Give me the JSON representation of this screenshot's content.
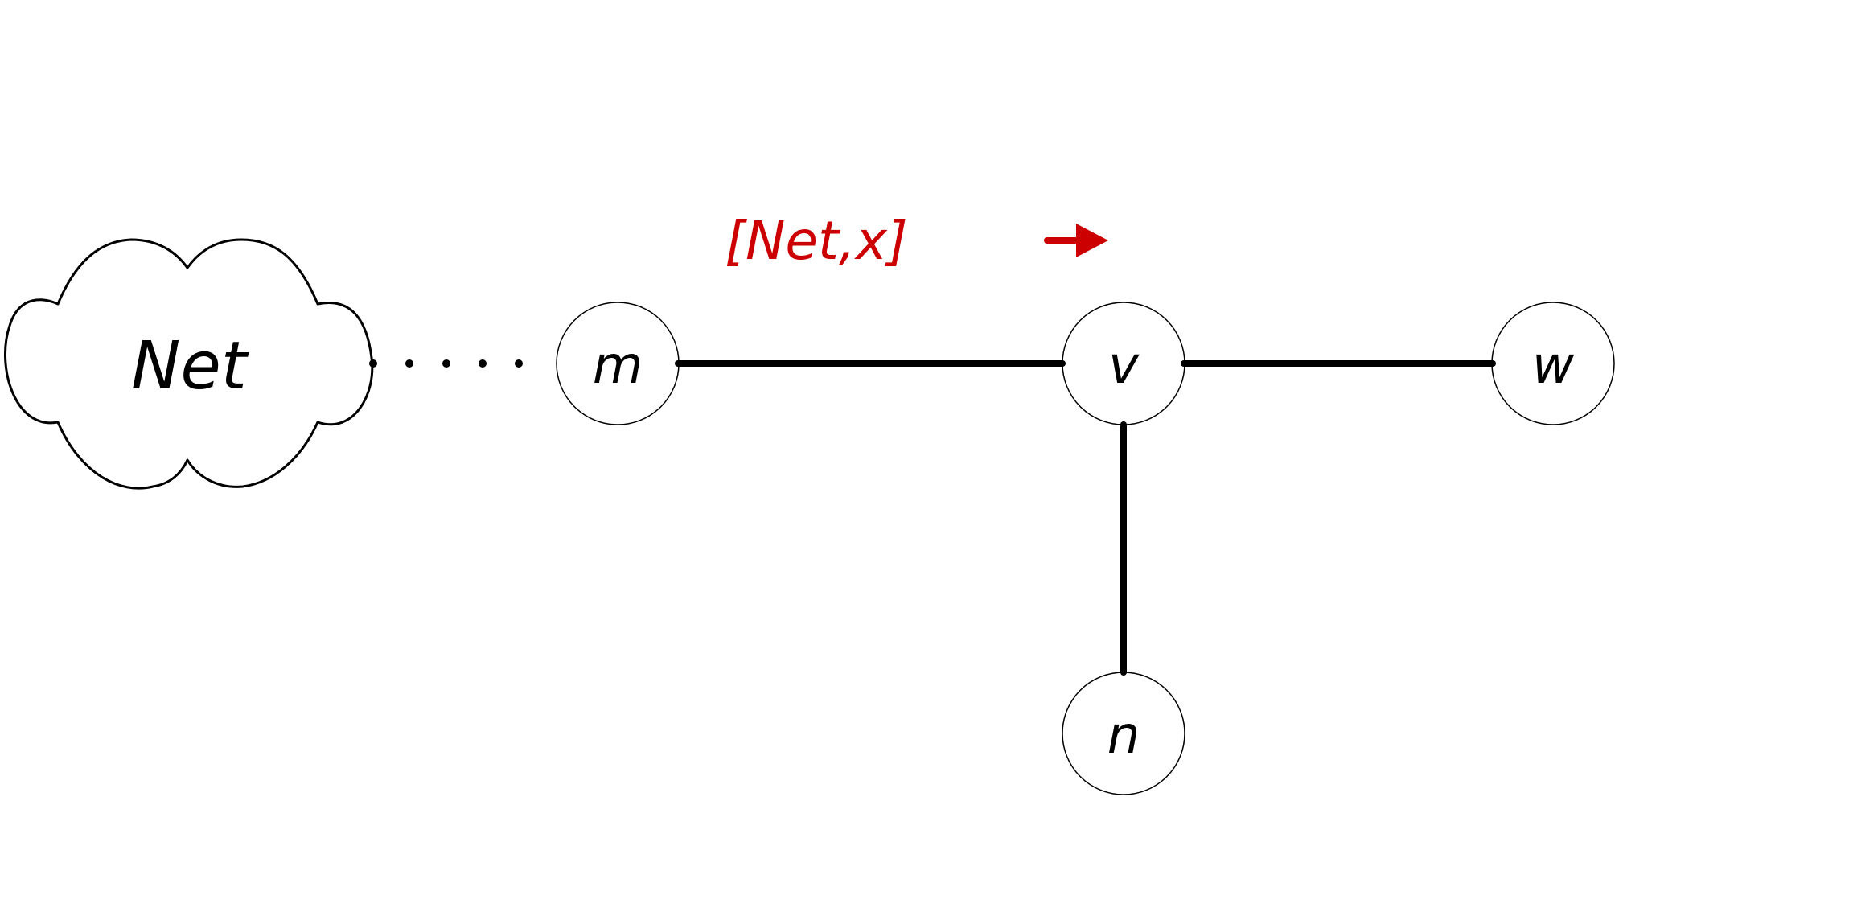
{
  "cloud": {
    "label": "Net"
  },
  "nodes": {
    "m": {
      "label": "m"
    },
    "v": {
      "label": "v"
    },
    "w": {
      "label": "w"
    },
    "n": {
      "label": "n"
    }
  },
  "message": {
    "label": "[Net,x]",
    "color": "#cc0000",
    "direction": "right"
  },
  "edges": [
    {
      "from": "m",
      "to": "v"
    },
    {
      "from": "v",
      "to": "w"
    },
    {
      "from": "v",
      "to": "n"
    }
  ],
  "link_style": "dotted-from-cloud-to-m"
}
